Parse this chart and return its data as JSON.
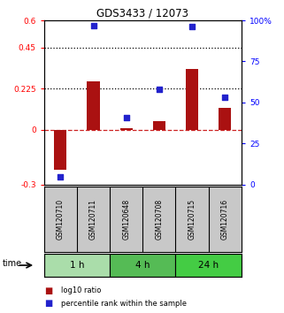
{
  "title": "GDS3433 / 12073",
  "samples": [
    "GSM120710",
    "GSM120711",
    "GSM120648",
    "GSM120708",
    "GSM120715",
    "GSM120716"
  ],
  "log10_ratio": [
    -0.22,
    0.265,
    0.01,
    0.05,
    0.335,
    0.12
  ],
  "percentile_rank": [
    5,
    97,
    41,
    58,
    96,
    53
  ],
  "ylim_left": [
    -0.3,
    0.6
  ],
  "ylim_right": [
    0,
    100
  ],
  "yticks_left": [
    -0.3,
    0,
    0.225,
    0.45,
    0.6
  ],
  "ytick_labels_left": [
    "-0.3",
    "0",
    "0.225",
    "0.45",
    "0.6"
  ],
  "yticks_right": [
    0,
    25,
    50,
    75,
    100
  ],
  "ytick_labels_right": [
    "0",
    "25",
    "50",
    "75",
    "100%"
  ],
  "hlines": [
    0.45,
    0.225
  ],
  "bar_color": "#AA1111",
  "dot_color": "#2222CC",
  "zero_line_color": "#CC2222",
  "hline_color": "black",
  "time_groups": [
    {
      "label": "1 h",
      "start": 0,
      "end": 2,
      "color": "#AADDAA"
    },
    {
      "label": "4 h",
      "start": 2,
      "end": 4,
      "color": "#55BB55"
    },
    {
      "label": "24 h",
      "start": 4,
      "end": 6,
      "color": "#44CC44"
    }
  ],
  "legend_bar_label": "log10 ratio",
  "legend_dot_label": "percentile rank within the sample",
  "time_label": "time",
  "bg_color": "white",
  "sample_box_color": "#C8C8C8"
}
